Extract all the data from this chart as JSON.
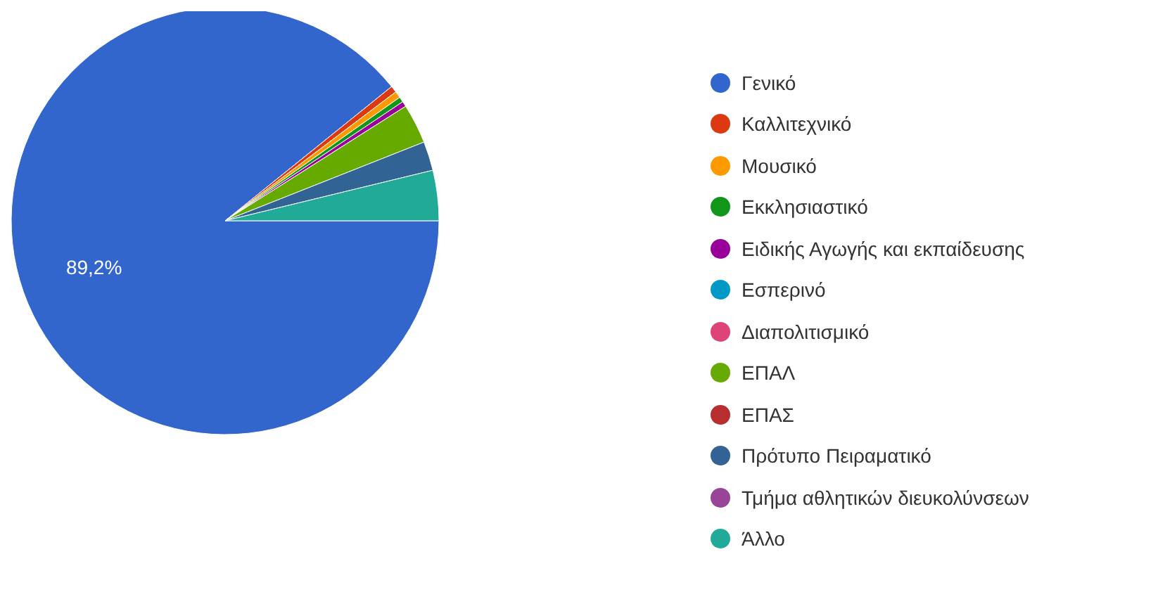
{
  "chart_data": {
    "type": "pie",
    "categories": [
      "Γενικό",
      "Καλλιτεχνικό",
      "Μουσικό",
      "Εκκλησιαστικό",
      "Ειδικής Αγωγής και εκπαίδευσης",
      "Εσπερινό",
      "Διαπολιτισμικό",
      "ΕΠΑΛ",
      "ΕΠΑΣ",
      "Πρότυπο Πειραματικό",
      "Τμήμα αθλητικών διευκολύνσεων",
      "Άλλο"
    ],
    "values": [
      89.2,
      0.5,
      0.5,
      0.4,
      0.4,
      null,
      null,
      3.0,
      null,
      2.2,
      0,
      3.8
    ],
    "colors": [
      "#3366cc",
      "#dc3912",
      "#ff9900",
      "#109618",
      "#990099",
      "#0099c6",
      "#dd4477",
      "#66aa00",
      "#b82e2e",
      "#316395",
      "#994499",
      "#22aa99"
    ],
    "value_labels": [
      "89,2%",
      null,
      null,
      null,
      null,
      null,
      null,
      null,
      null,
      null,
      null,
      null
    ],
    "legend": "right"
  }
}
